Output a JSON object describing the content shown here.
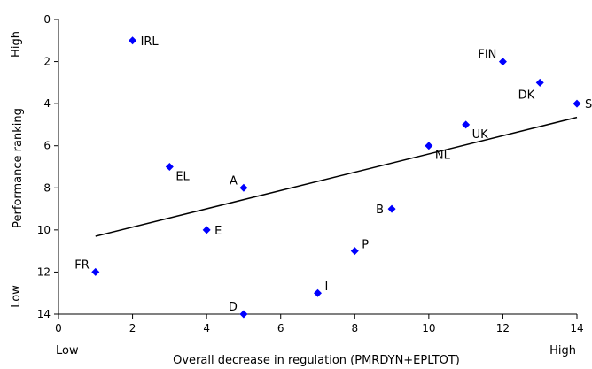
{
  "chart_data": {
    "type": "scatter",
    "title": "",
    "xlabel": "Overall decrease in regulation (PMRDYN+EPLTOT)",
    "ylabel": "Performance ranking",
    "xlim": [
      0,
      14
    ],
    "ylim": [
      0,
      14
    ],
    "y_reversed": true,
    "x_ticks": [
      0,
      2,
      4,
      6,
      8,
      10,
      12,
      14
    ],
    "y_ticks": [
      0,
      2,
      4,
      6,
      8,
      10,
      12,
      14
    ],
    "x_low_label": "Low",
    "x_high_label": "High",
    "y_high_label": "High",
    "y_low_label": "Low",
    "grid": false,
    "legend": false,
    "marker_color": "#0000ff",
    "points": [
      {
        "label": "IRL",
        "x": 2,
        "y": 1,
        "pos": "right"
      },
      {
        "label": "FIN",
        "x": 12,
        "y": 2,
        "pos": "upper-left"
      },
      {
        "label": "DK",
        "x": 13,
        "y": 3,
        "pos": "lower-left"
      },
      {
        "label": "S",
        "x": 14,
        "y": 4,
        "pos": "right"
      },
      {
        "label": "UK",
        "x": 11,
        "y": 5,
        "pos": "lower-right"
      },
      {
        "label": "NL",
        "x": 10,
        "y": 6,
        "pos": "lower-right"
      },
      {
        "label": "EL",
        "x": 3,
        "y": 7,
        "pos": "lower-right"
      },
      {
        "label": "A",
        "x": 5,
        "y": 8,
        "pos": "upper-left"
      },
      {
        "label": "B",
        "x": 9,
        "y": 9,
        "pos": "left"
      },
      {
        "label": "E",
        "x": 4,
        "y": 10,
        "pos": "right"
      },
      {
        "label": "P",
        "x": 8,
        "y": 11,
        "pos": "upper-right"
      },
      {
        "label": "FR",
        "x": 1,
        "y": 12,
        "pos": "upper-left"
      },
      {
        "label": "I",
        "x": 7,
        "y": 13,
        "pos": "upper-right"
      },
      {
        "label": "D",
        "x": 5,
        "y": 14,
        "pos": "upper-left"
      }
    ],
    "trendline": {
      "x": [
        1,
        14
      ],
      "y": [
        10.3,
        4.65
      ]
    }
  }
}
